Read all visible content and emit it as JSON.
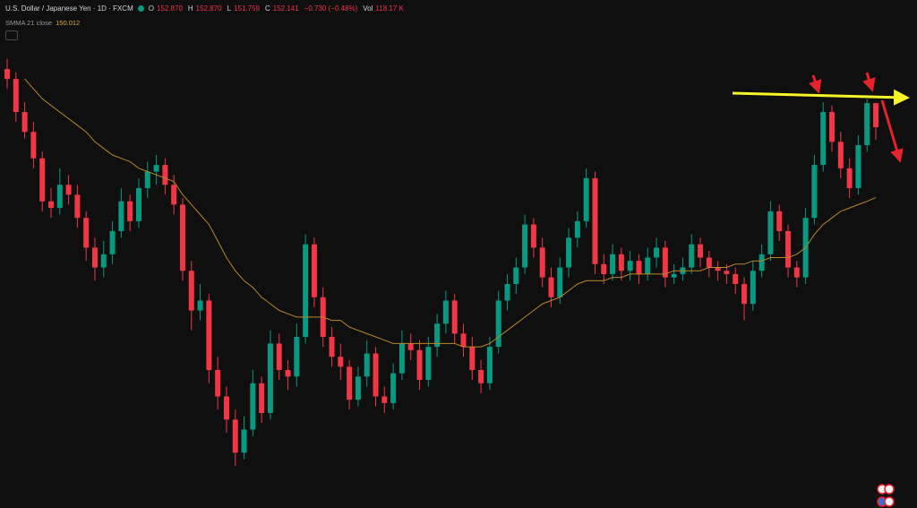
{
  "header": {
    "title": "U.S. Dollar / Japanese Yen · 1D · FXCM",
    "open_label": "O",
    "open": "152.870",
    "high_label": "H",
    "high": "152.870",
    "low_label": "L",
    "low": "151.759",
    "close_label": "C",
    "close": "152.141",
    "change": "−0.730 (−0.48%)",
    "volume_label": "Vol",
    "volume": "118.17 K"
  },
  "chart_data": {
    "type": "candlestick",
    "color_up": "#089981",
    "color_down": "#f23645",
    "ohlc": [
      [
        153.9,
        154.2,
        153.3,
        153.6
      ],
      [
        153.6,
        153.8,
        152.3,
        152.6
      ],
      [
        152.6,
        152.9,
        151.8,
        152.0
      ],
      [
        152.0,
        152.3,
        150.9,
        151.2
      ],
      [
        151.2,
        151.4,
        149.6,
        149.9
      ],
      [
        149.9,
        150.3,
        149.4,
        149.7
      ],
      [
        149.7,
        150.9,
        149.5,
        150.4
      ],
      [
        150.4,
        150.7,
        149.8,
        150.1
      ],
      [
        150.1,
        150.4,
        149.1,
        149.4
      ],
      [
        149.4,
        149.6,
        148.1,
        148.5
      ],
      [
        148.5,
        148.8,
        147.5,
        147.9
      ],
      [
        147.9,
        148.7,
        147.6,
        148.3
      ],
      [
        148.3,
        149.3,
        148.0,
        149.0
      ],
      [
        149.0,
        150.3,
        148.8,
        149.9
      ],
      [
        149.9,
        150.1,
        149.0,
        149.3
      ],
      [
        149.3,
        150.6,
        149.1,
        150.3
      ],
      [
        150.3,
        151.1,
        150.0,
        150.8
      ],
      [
        150.8,
        151.3,
        150.4,
        151.0
      ],
      [
        151.0,
        151.2,
        150.1,
        150.4
      ],
      [
        150.4,
        150.7,
        149.5,
        149.8
      ],
      [
        149.8,
        150.0,
        147.5,
        147.8
      ],
      [
        147.8,
        148.1,
        146.0,
        146.6
      ],
      [
        146.6,
        147.4,
        146.3,
        146.9
      ],
      [
        146.9,
        147.1,
        144.4,
        144.8
      ],
      [
        144.8,
        145.2,
        143.6,
        144.0
      ],
      [
        144.0,
        144.3,
        142.9,
        143.3
      ],
      [
        143.3,
        143.6,
        141.9,
        142.3
      ],
      [
        142.3,
        143.4,
        142.1,
        143.0
      ],
      [
        143.0,
        144.8,
        142.8,
        144.4
      ],
      [
        144.4,
        144.6,
        143.2,
        143.5
      ],
      [
        143.5,
        146.0,
        143.3,
        145.6
      ],
      [
        145.6,
        145.9,
        144.5,
        144.8
      ],
      [
        144.8,
        145.1,
        144.2,
        144.6
      ],
      [
        144.6,
        146.2,
        144.3,
        145.8
      ],
      [
        145.8,
        148.9,
        145.6,
        148.6
      ],
      [
        148.6,
        148.8,
        146.7,
        147.0
      ],
      [
        147.0,
        147.3,
        145.5,
        145.8
      ],
      [
        145.8,
        146.1,
        144.9,
        145.2
      ],
      [
        145.2,
        145.6,
        144.5,
        144.9
      ],
      [
        144.9,
        145.1,
        143.6,
        143.9
      ],
      [
        143.9,
        144.9,
        143.7,
        144.6
      ],
      [
        144.6,
        145.7,
        144.3,
        145.3
      ],
      [
        145.3,
        145.5,
        143.7,
        144.0
      ],
      [
        144.0,
        144.3,
        143.5,
        143.8
      ],
      [
        143.8,
        145.0,
        143.6,
        144.7
      ],
      [
        144.7,
        146.0,
        144.5,
        145.6
      ],
      [
        145.6,
        145.9,
        145.1,
        145.4
      ],
      [
        145.4,
        145.7,
        144.2,
        144.5
      ],
      [
        144.5,
        145.8,
        144.3,
        145.5
      ],
      [
        145.5,
        146.5,
        145.2,
        146.2
      ],
      [
        146.2,
        147.2,
        145.9,
        146.9
      ],
      [
        146.9,
        147.1,
        145.6,
        145.9
      ],
      [
        145.9,
        146.2,
        145.2,
        145.5
      ],
      [
        145.5,
        145.8,
        144.5,
        144.8
      ],
      [
        144.8,
        145.1,
        144.1,
        144.4
      ],
      [
        144.4,
        145.8,
        144.2,
        145.5
      ],
      [
        145.5,
        147.2,
        145.3,
        146.9
      ],
      [
        146.9,
        147.7,
        146.6,
        147.4
      ],
      [
        147.4,
        148.2,
        147.1,
        147.9
      ],
      [
        147.9,
        149.5,
        147.7,
        149.2
      ],
      [
        149.2,
        149.4,
        148.2,
        148.5
      ],
      [
        148.5,
        148.8,
        147.3,
        147.6
      ],
      [
        147.6,
        147.9,
        146.7,
        147.0
      ],
      [
        147.0,
        148.2,
        146.8,
        147.9
      ],
      [
        147.9,
        149.1,
        147.6,
        148.8
      ],
      [
        148.8,
        149.6,
        148.5,
        149.3
      ],
      [
        149.3,
        150.9,
        149.1,
        150.6
      ],
      [
        150.6,
        150.8,
        147.7,
        148.0
      ],
      [
        148.0,
        148.3,
        147.4,
        147.7
      ],
      [
        147.7,
        148.6,
        147.5,
        148.3
      ],
      [
        148.3,
        148.5,
        147.5,
        147.8
      ],
      [
        147.8,
        148.4,
        147.5,
        148.1
      ],
      [
        148.1,
        148.3,
        147.4,
        147.7
      ],
      [
        147.7,
        148.5,
        147.5,
        148.2
      ],
      [
        148.2,
        148.8,
        147.9,
        148.5
      ],
      [
        148.5,
        148.7,
        147.3,
        147.6
      ],
      [
        147.6,
        148.0,
        147.4,
        147.7
      ],
      [
        147.7,
        148.2,
        147.5,
        147.9
      ],
      [
        147.9,
        148.9,
        147.7,
        148.6
      ],
      [
        148.6,
        148.8,
        147.9,
        148.2
      ],
      [
        148.2,
        148.4,
        147.6,
        147.9
      ],
      [
        147.9,
        148.1,
        147.5,
        147.8
      ],
      [
        147.8,
        148.0,
        147.4,
        147.7
      ],
      [
        147.7,
        147.9,
        147.1,
        147.4
      ],
      [
        147.4,
        147.6,
        146.3,
        146.8
      ],
      [
        146.8,
        148.1,
        146.6,
        147.8
      ],
      [
        147.8,
        148.6,
        147.6,
        148.3
      ],
      [
        148.3,
        149.9,
        148.1,
        149.6
      ],
      [
        149.6,
        149.8,
        148.7,
        149.0
      ],
      [
        149.0,
        149.2,
        147.6,
        147.9
      ],
      [
        147.9,
        148.1,
        147.3,
        147.6
      ],
      [
        147.6,
        149.7,
        147.4,
        149.4
      ],
      [
        149.4,
        151.3,
        149.2,
        151.0
      ],
      [
        151.0,
        152.9,
        150.8,
        152.6
      ],
      [
        152.6,
        152.8,
        151.4,
        151.7
      ],
      [
        151.7,
        152.0,
        150.6,
        150.9
      ],
      [
        150.9,
        151.2,
        150.0,
        150.3
      ],
      [
        150.3,
        151.9,
        150.1,
        151.6
      ],
      [
        151.6,
        153.0,
        151.4,
        152.87
      ],
      [
        152.87,
        152.87,
        151.759,
        152.141
      ]
    ],
    "series": [
      {
        "name": "SMMA 21 close",
        "color": "#b8862b",
        "values": [
          null,
          null,
          153.6,
          153.3,
          153.0,
          152.8,
          152.6,
          152.4,
          152.2,
          152.0,
          151.7,
          151.5,
          151.3,
          151.2,
          151.1,
          150.9,
          150.8,
          150.7,
          150.6,
          150.5,
          150.1,
          149.8,
          149.5,
          149.2,
          148.7,
          148.2,
          147.8,
          147.5,
          147.3,
          147.0,
          146.8,
          146.6,
          146.5,
          146.4,
          146.4,
          146.4,
          146.4,
          146.3,
          146.3,
          146.1,
          146.0,
          145.9,
          145.8,
          145.7,
          145.6,
          145.6,
          145.6,
          145.6,
          145.6,
          145.6,
          145.6,
          145.6,
          145.5,
          145.5,
          145.5,
          145.6,
          145.8,
          146.0,
          146.2,
          146.4,
          146.6,
          146.8,
          146.9,
          147.0,
          147.2,
          147.4,
          147.5,
          147.5,
          147.5,
          147.6,
          147.6,
          147.7,
          147.7,
          147.7,
          147.7,
          147.7,
          147.8,
          147.8,
          147.8,
          147.8,
          147.9,
          147.9,
          147.9,
          148.0,
          148.0,
          148.1,
          148.1,
          148.2,
          148.2,
          148.2,
          148.3,
          148.5,
          148.9,
          149.2,
          149.4,
          149.6,
          149.7,
          149.8,
          149.9,
          150.012
        ]
      }
    ]
  }
}
